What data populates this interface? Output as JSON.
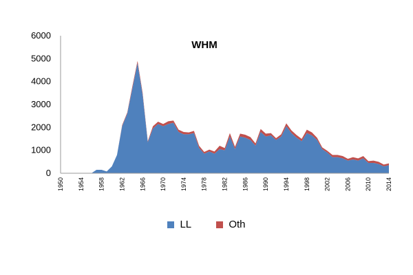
{
  "chart_data": {
    "type": "area",
    "title": "WHM",
    "stacked": true,
    "xlabel": "",
    "ylabel": "",
    "ylim": [
      0,
      6000
    ],
    "yticks": [
      0,
      1000,
      2000,
      3000,
      4000,
      5000,
      6000
    ],
    "x": [
      1950,
      1951,
      1952,
      1953,
      1954,
      1955,
      1956,
      1957,
      1958,
      1959,
      1960,
      1961,
      1962,
      1963,
      1964,
      1965,
      1966,
      1967,
      1968,
      1969,
      1970,
      1971,
      1972,
      1973,
      1974,
      1975,
      1976,
      1977,
      1978,
      1979,
      1980,
      1981,
      1982,
      1983,
      1984,
      1985,
      1986,
      1987,
      1988,
      1989,
      1990,
      1991,
      1992,
      1993,
      1994,
      1995,
      1996,
      1997,
      1998,
      1999,
      2000,
      2001,
      2002,
      2003,
      2004,
      2005,
      2006,
      2007,
      2008,
      2009,
      2010,
      2011,
      2012,
      2013,
      2014
    ],
    "xtick_labels": [
      "1950",
      "1954",
      "1958",
      "1962",
      "1966",
      "1970",
      "1974",
      "1978",
      "1982",
      "1986",
      "1990",
      "1994",
      "1998",
      "2002",
      "2006",
      "2010",
      "2014"
    ],
    "series": [
      {
        "name": "LL",
        "color": "#4f81bd",
        "values": [
          0,
          0,
          0,
          0,
          0,
          0,
          0,
          150,
          150,
          80,
          300,
          800,
          2050,
          2600,
          3700,
          4800,
          3400,
          1350,
          1950,
          2150,
          2050,
          2150,
          2200,
          1800,
          1700,
          1700,
          1750,
          1100,
          850,
          950,
          850,
          1050,
          1000,
          1600,
          1050,
          1600,
          1550,
          1450,
          1200,
          1800,
          1600,
          1650,
          1450,
          1600,
          2050,
          1750,
          1550,
          1400,
          1750,
          1650,
          1450,
          1050,
          900,
          700,
          700,
          650,
          550,
          600,
          550,
          650,
          450,
          450,
          400,
          300,
          350
        ]
      },
      {
        "name": "Oth",
        "color": "#c0504d",
        "values": [
          0,
          0,
          0,
          0,
          0,
          0,
          0,
          0,
          0,
          0,
          0,
          0,
          50,
          50,
          100,
          100,
          100,
          50,
          100,
          100,
          100,
          120,
          100,
          100,
          100,
          80,
          100,
          100,
          80,
          80,
          100,
          150,
          100,
          150,
          100,
          130,
          130,
          130,
          100,
          130,
          130,
          100,
          80,
          100,
          130,
          120,
          120,
          100,
          150,
          130,
          100,
          80,
          80,
          100,
          100,
          100,
          80,
          100,
          100,
          100,
          80,
          100,
          100,
          80,
          80
        ]
      }
    ],
    "legend_position": "bottom",
    "grid": false
  }
}
